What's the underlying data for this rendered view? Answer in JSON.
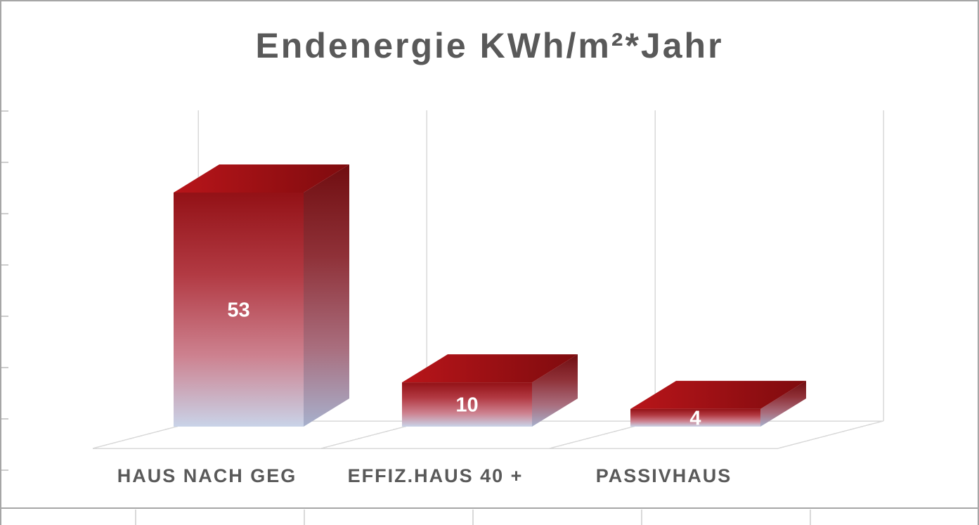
{
  "page": {
    "background": "#ffffff",
    "border_color": "#a6a6a6"
  },
  "chart_data": {
    "type": "bar",
    "variant": "3d-column",
    "title": "Endenergie KWh/m²*Jahr",
    "categories": [
      "HAUS NACH GEG",
      "EFFIZ.HAUS 40 +",
      "PASSIVHAUS"
    ],
    "values": [
      53,
      10,
      4
    ],
    "data_labels": [
      "53",
      "10",
      "4"
    ],
    "xlabel": "",
    "ylabel": "",
    "legend": "none",
    "grid": "vertical back-wall gridlines with 3D floor",
    "ylim": [
      0,
      60
    ],
    "colors": {
      "title": "#595959",
      "category_label": "#595959",
      "data_label": "#ffffff",
      "gridline": "#d9d9d9",
      "border": "#a6a6a6",
      "bar_top_gradient": [
        "#b8151a",
        "#7f0b0e"
      ],
      "bar_front_gradient": [
        "#931116",
        "#b23a43",
        "#cd8290",
        "#c9d3e8"
      ],
      "bar_side_gradient": [
        "#700d10",
        "#8f3138",
        "#a96e7e",
        "#a7b1cd"
      ]
    }
  }
}
